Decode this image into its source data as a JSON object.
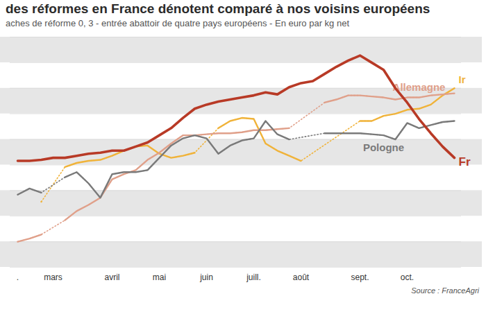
{
  "chart_data": {
    "type": "line",
    "title": "des réformes en France dénotent comparé à nos voisins européens",
    "subtitle": "aches de réforme 0, 3 - entrée abattoir de quatre pays européens - En euro par kg net",
    "source": "Source : FranceAgri",
    "categories": [
      ".",
      null,
      null,
      "mars",
      null,
      null,
      null,
      null,
      "avril",
      null,
      null,
      null,
      "mai",
      null,
      null,
      null,
      "juin",
      null,
      null,
      null,
      "juill.",
      null,
      null,
      null,
      "août",
      null,
      null,
      null,
      null,
      "sept.",
      null,
      null,
      null,
      "oct.",
      null,
      null,
      null,
      null
    ],
    "series": [
      {
        "name": "Ir",
        "color": "#f0b33a",
        "line_style": "solid",
        "values": [
          null,
          null,
          3.89,
          null,
          4.23,
          4.27,
          4.29,
          4.3,
          4.34,
          4.39,
          4.43,
          4.44,
          4.36,
          4.32,
          4.34,
          4.37,
          null,
          4.61,
          4.68,
          4.71,
          4.7,
          4.46,
          4.39,
          4.34,
          4.29,
          null,
          null,
          null,
          null,
          4.68,
          4.68,
          4.73,
          4.75,
          4.79,
          4.8,
          4.84,
          4.93,
          5.0
        ]
      },
      {
        "name": "Allemagne",
        "color": "#e0a08a",
        "line_style": "solid",
        "values": [
          3.5,
          3.53,
          3.57,
          null,
          3.71,
          3.8,
          3.86,
          3.93,
          4.11,
          4.16,
          4.2,
          4.3,
          4.37,
          4.46,
          4.54,
          4.54,
          4.55,
          4.56,
          4.56,
          4.57,
          4.59,
          4.59,
          4.6,
          4.61,
          null,
          null,
          4.86,
          4.89,
          4.93,
          4.93,
          4.92,
          4.91,
          4.89,
          4.91,
          4.91,
          4.93,
          4.94,
          4.95
        ]
      },
      {
        "name": "Pologne",
        "color": "#7a7a7a",
        "line_style": "solid",
        "values": [
          3.96,
          4.02,
          3.98,
          null,
          4.13,
          4.18,
          4.07,
          3.93,
          4.16,
          4.18,
          4.18,
          4.2,
          4.32,
          4.44,
          4.51,
          4.54,
          4.51,
          4.36,
          4.44,
          4.49,
          4.51,
          4.68,
          4.55,
          4.5,
          null,
          null,
          4.56,
          4.56,
          4.56,
          4.56,
          4.55,
          4.54,
          4.5,
          4.66,
          4.61,
          4.64,
          4.67,
          4.68
        ]
      },
      {
        "name": "Fr",
        "color": "#b83a26",
        "line_style": "solid",
        "values": [
          4.29,
          4.29,
          4.3,
          4.32,
          4.32,
          4.34,
          4.36,
          4.37,
          4.39,
          4.39,
          4.43,
          4.47,
          4.54,
          4.61,
          4.71,
          4.8,
          4.84,
          4.87,
          4.89,
          4.91,
          4.93,
          4.96,
          4.94,
          5.01,
          5.05,
          5.07,
          5.14,
          5.21,
          5.27,
          5.32,
          5.25,
          5.18,
          5.0,
          4.86,
          4.7,
          4.56,
          4.43,
          4.32
        ]
      }
    ],
    "ylim": [
      3.25,
      5.5
    ],
    "yticks": [
      3.25,
      3.5,
      3.75,
      4,
      4.25,
      4.5,
      4.75,
      5,
      5.25,
      5.5
    ],
    "grid": true,
    "tick_labels": "x"
  }
}
